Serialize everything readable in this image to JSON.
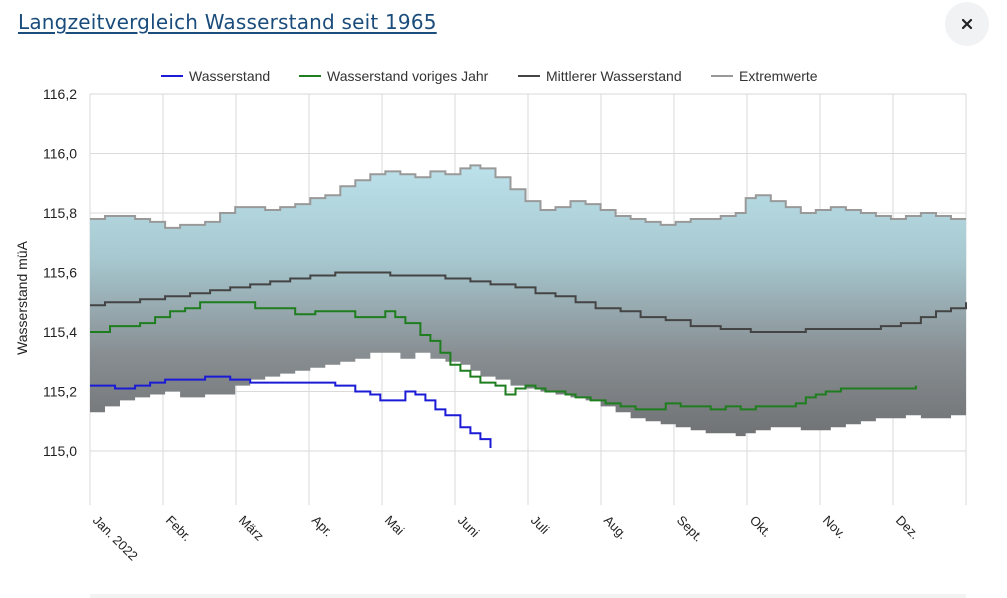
{
  "dialog": {
    "title": "Langzeitvergleich Wasserstand seit 1965",
    "close_icon": "close-icon"
  },
  "chart_data": {
    "type": "line",
    "title": "",
    "ylabel": "Wasserstand müA",
    "xlabel": "",
    "ylim": [
      114.85,
      116.2
    ],
    "yticks": [
      "116,2",
      "116,0",
      "115,8",
      "115,6",
      "115,4",
      "115,2",
      "115,0"
    ],
    "categories": [
      "Jan. 2022",
      "Febr.",
      "März",
      "Apr.",
      "Mai",
      "Juni",
      "Juli",
      "Aug.",
      "Sept.",
      "Okt.",
      "Nov.",
      "Dez."
    ],
    "grid": true,
    "legend_position": "top",
    "x_unit_note": "x = Monat (0 = Anfang Jan., 12 = Ende Dez.)",
    "series": [
      {
        "name": "Wasserstand",
        "color": "#1b1bd6",
        "step": true,
        "points": [
          [
            0,
            115.22
          ],
          [
            0.3,
            115.22
          ],
          [
            0.5,
            115.21
          ],
          [
            0.7,
            115.21
          ],
          [
            0.9,
            115.22
          ],
          [
            1.2,
            115.23
          ],
          [
            1.5,
            115.24
          ],
          [
            1.7,
            115.24
          ],
          [
            2.0,
            115.24
          ],
          [
            2.3,
            115.25
          ],
          [
            2.5,
            115.25
          ],
          [
            2.8,
            115.24
          ],
          [
            3.0,
            115.24
          ],
          [
            3.2,
            115.23
          ],
          [
            3.5,
            115.23
          ],
          [
            3.8,
            115.23
          ],
          [
            4.0,
            115.23
          ],
          [
            4.3,
            115.23
          ],
          [
            4.6,
            115.23
          ],
          [
            4.9,
            115.22
          ],
          [
            5.1,
            115.22
          ],
          [
            5.3,
            115.2
          ],
          [
            5.6,
            115.19
          ],
          [
            5.8,
            115.17
          ],
          [
            6.0,
            115.17
          ],
          [
            6.2,
            115.17
          ],
          [
            6.3,
            115.2
          ],
          [
            6.5,
            115.19
          ],
          [
            6.7,
            115.17
          ],
          [
            6.9,
            115.14
          ],
          [
            7.1,
            115.12
          ],
          [
            7.4,
            115.08
          ],
          [
            7.6,
            115.06
          ],
          [
            7.8,
            115.04
          ],
          [
            8.0,
            115.01
          ]
        ]
      },
      {
        "name": "Wasserstand voriges Jahr",
        "color": "#1e7d1e",
        "step": true,
        "points": [
          [
            0,
            115.4
          ],
          [
            0.2,
            115.4
          ],
          [
            0.4,
            115.42
          ],
          [
            0.8,
            115.42
          ],
          [
            1.0,
            115.43
          ],
          [
            1.3,
            115.45
          ],
          [
            1.6,
            115.47
          ],
          [
            1.9,
            115.48
          ],
          [
            2.2,
            115.5
          ],
          [
            2.5,
            115.5
          ],
          [
            2.8,
            115.5
          ],
          [
            3.0,
            115.5
          ],
          [
            3.3,
            115.48
          ],
          [
            3.6,
            115.48
          ],
          [
            3.9,
            115.48
          ],
          [
            4.1,
            115.46
          ],
          [
            4.3,
            115.46
          ],
          [
            4.5,
            115.47
          ],
          [
            4.7,
            115.47
          ],
          [
            5.0,
            115.47
          ],
          [
            5.3,
            115.45
          ],
          [
            5.6,
            115.45
          ],
          [
            5.9,
            115.47
          ],
          [
            6.1,
            115.45
          ],
          [
            6.3,
            115.43
          ],
          [
            6.6,
            115.39
          ],
          [
            6.8,
            115.37
          ],
          [
            7.0,
            115.33
          ],
          [
            7.2,
            115.29
          ],
          [
            7.4,
            115.27
          ],
          [
            7.6,
            115.25
          ],
          [
            7.8,
            115.23
          ],
          [
            8.1,
            115.22
          ],
          [
            8.3,
            115.19
          ],
          [
            8.5,
            115.21
          ],
          [
            8.7,
            115.22
          ],
          [
            8.9,
            115.21
          ],
          [
            9.1,
            115.2
          ],
          [
            9.3,
            115.2
          ],
          [
            9.5,
            115.19
          ],
          [
            9.7,
            115.18
          ],
          [
            10.0,
            115.17
          ],
          [
            10.3,
            115.16
          ],
          [
            10.6,
            115.15
          ],
          [
            10.9,
            115.14
          ],
          [
            11.1,
            115.14
          ],
          [
            11.3,
            115.14
          ],
          [
            11.5,
            115.16
          ],
          [
            11.8,
            115.15
          ],
          [
            12.1,
            115.15
          ],
          [
            12.4,
            115.14
          ],
          [
            12.7,
            115.15
          ],
          [
            13.0,
            115.14
          ],
          [
            13.3,
            115.15
          ],
          [
            13.6,
            115.15
          ],
          [
            13.9,
            115.15
          ],
          [
            14.1,
            115.16
          ],
          [
            14.3,
            115.18
          ],
          [
            14.5,
            115.19
          ],
          [
            14.7,
            115.2
          ],
          [
            15.0,
            115.21
          ],
          [
            15.3,
            115.21
          ],
          [
            15.6,
            115.21
          ],
          [
            15.9,
            115.21
          ],
          [
            16.2,
            115.21
          ],
          [
            16.5,
            115.22
          ]
        ]
      },
      {
        "name": "Mittlerer Wasserstand",
        "color": "#444444",
        "step": true,
        "points": [
          [
            0,
            115.49
          ],
          [
            0.3,
            115.5
          ],
          [
            0.8,
            115.5
          ],
          [
            1.0,
            115.51
          ],
          [
            1.5,
            115.52
          ],
          [
            2.0,
            115.53
          ],
          [
            2.4,
            115.54
          ],
          [
            2.8,
            115.55
          ],
          [
            3.2,
            115.56
          ],
          [
            3.6,
            115.57
          ],
          [
            4.0,
            115.58
          ],
          [
            4.4,
            115.59
          ],
          [
            4.9,
            115.6
          ],
          [
            5.5,
            115.6
          ],
          [
            6.0,
            115.59
          ],
          [
            6.6,
            115.59
          ],
          [
            7.1,
            115.58
          ],
          [
            7.6,
            115.57
          ],
          [
            8.0,
            115.56
          ],
          [
            8.5,
            115.55
          ],
          [
            8.9,
            115.53
          ],
          [
            9.3,
            115.52
          ],
          [
            9.7,
            115.5
          ],
          [
            10.1,
            115.48
          ],
          [
            10.6,
            115.47
          ],
          [
            11.0,
            115.45
          ],
          [
            11.5,
            115.44
          ],
          [
            12.0,
            115.42
          ],
          [
            12.6,
            115.41
          ],
          [
            13.2,
            115.4
          ],
          [
            13.8,
            115.4
          ],
          [
            14.3,
            115.41
          ],
          [
            14.8,
            115.41
          ],
          [
            15.3,
            115.41
          ],
          [
            15.8,
            115.42
          ],
          [
            16.2,
            115.43
          ],
          [
            16.6,
            115.45
          ],
          [
            16.9,
            115.47
          ],
          [
            17.2,
            115.48
          ],
          [
            17.5,
            115.5
          ]
        ]
      },
      {
        "name": "Extremwerte",
        "color": "#999999",
        "band": true,
        "upper": [
          [
            0,
            115.78
          ],
          [
            0.3,
            115.79
          ],
          [
            0.6,
            115.79
          ],
          [
            0.9,
            115.78
          ],
          [
            1.2,
            115.77
          ],
          [
            1.5,
            115.75
          ],
          [
            1.8,
            115.76
          ],
          [
            2.0,
            115.76
          ],
          [
            2.3,
            115.77
          ],
          [
            2.6,
            115.8
          ],
          [
            2.9,
            115.82
          ],
          [
            3.2,
            115.82
          ],
          [
            3.5,
            115.81
          ],
          [
            3.8,
            115.82
          ],
          [
            4.1,
            115.83
          ],
          [
            4.4,
            115.85
          ],
          [
            4.7,
            115.86
          ],
          [
            5.0,
            115.89
          ],
          [
            5.3,
            115.91
          ],
          [
            5.6,
            115.93
          ],
          [
            5.9,
            115.94
          ],
          [
            6.2,
            115.93
          ],
          [
            6.5,
            115.92
          ],
          [
            6.8,
            115.94
          ],
          [
            7.1,
            115.93
          ],
          [
            7.4,
            115.95
          ],
          [
            7.6,
            115.96
          ],
          [
            7.8,
            115.95
          ],
          [
            8.1,
            115.92
          ],
          [
            8.4,
            115.88
          ],
          [
            8.7,
            115.84
          ],
          [
            9.0,
            115.81
          ],
          [
            9.3,
            115.82
          ],
          [
            9.6,
            115.84
          ],
          [
            9.9,
            115.83
          ],
          [
            10.2,
            115.81
          ],
          [
            10.5,
            115.79
          ],
          [
            10.8,
            115.78
          ],
          [
            11.1,
            115.77
          ],
          [
            11.4,
            115.76
          ],
          [
            11.7,
            115.77
          ],
          [
            12.0,
            115.78
          ],
          [
            12.3,
            115.78
          ],
          [
            12.6,
            115.79
          ],
          [
            12.9,
            115.8
          ],
          [
            13.1,
            115.85
          ],
          [
            13.3,
            115.86
          ],
          [
            13.6,
            115.84
          ],
          [
            13.9,
            115.82
          ],
          [
            14.2,
            115.8
          ],
          [
            14.5,
            115.81
          ],
          [
            14.8,
            115.82
          ],
          [
            15.1,
            115.81
          ],
          [
            15.4,
            115.8
          ],
          [
            15.7,
            115.79
          ],
          [
            16.0,
            115.78
          ],
          [
            16.3,
            115.79
          ],
          [
            16.6,
            115.8
          ],
          [
            16.9,
            115.79
          ],
          [
            17.2,
            115.78
          ],
          [
            17.5,
            115.78
          ]
        ],
        "lower": [
          [
            0,
            115.11
          ],
          [
            0.3,
            115.13
          ],
          [
            0.6,
            115.15
          ],
          [
            0.9,
            115.17
          ],
          [
            1.2,
            115.18
          ],
          [
            1.5,
            115.19
          ],
          [
            1.8,
            115.2
          ],
          [
            2.0,
            115.18
          ],
          [
            2.3,
            115.18
          ],
          [
            2.6,
            115.19
          ],
          [
            2.9,
            115.19
          ],
          [
            3.2,
            115.22
          ],
          [
            3.5,
            115.24
          ],
          [
            3.8,
            115.25
          ],
          [
            4.1,
            115.26
          ],
          [
            4.4,
            115.27
          ],
          [
            4.7,
            115.28
          ],
          [
            5.0,
            115.29
          ],
          [
            5.3,
            115.3
          ],
          [
            5.6,
            115.31
          ],
          [
            5.9,
            115.33
          ],
          [
            6.2,
            115.33
          ],
          [
            6.5,
            115.31
          ],
          [
            6.8,
            115.33
          ],
          [
            7.1,
            115.31
          ],
          [
            7.4,
            115.3
          ],
          [
            7.6,
            115.29
          ],
          [
            7.8,
            115.27
          ],
          [
            8.1,
            115.25
          ],
          [
            8.4,
            115.24
          ],
          [
            8.7,
            115.22
          ],
          [
            9.0,
            115.21
          ],
          [
            9.3,
            115.2
          ],
          [
            9.6,
            115.19
          ],
          [
            9.9,
            115.18
          ],
          [
            10.2,
            115.17
          ],
          [
            10.5,
            115.15
          ],
          [
            10.8,
            115.13
          ],
          [
            11.1,
            115.11
          ],
          [
            11.4,
            115.1
          ],
          [
            11.7,
            115.09
          ],
          [
            12.0,
            115.08
          ],
          [
            12.3,
            115.07
          ],
          [
            12.6,
            115.06
          ],
          [
            12.9,
            115.06
          ],
          [
            13.1,
            115.05
          ],
          [
            13.3,
            115.06
          ],
          [
            13.6,
            115.07
          ],
          [
            13.9,
            115.08
          ],
          [
            14.2,
            115.08
          ],
          [
            14.5,
            115.07
          ],
          [
            14.8,
            115.07
          ],
          [
            15.1,
            115.08
          ],
          [
            15.4,
            115.09
          ],
          [
            15.7,
            115.1
          ],
          [
            16.0,
            115.11
          ],
          [
            16.3,
            115.11
          ],
          [
            16.6,
            115.12
          ],
          [
            16.9,
            115.11
          ],
          [
            17.2,
            115.11
          ],
          [
            17.5,
            115.12
          ]
        ]
      }
    ],
    "x_max": 17.5
  }
}
